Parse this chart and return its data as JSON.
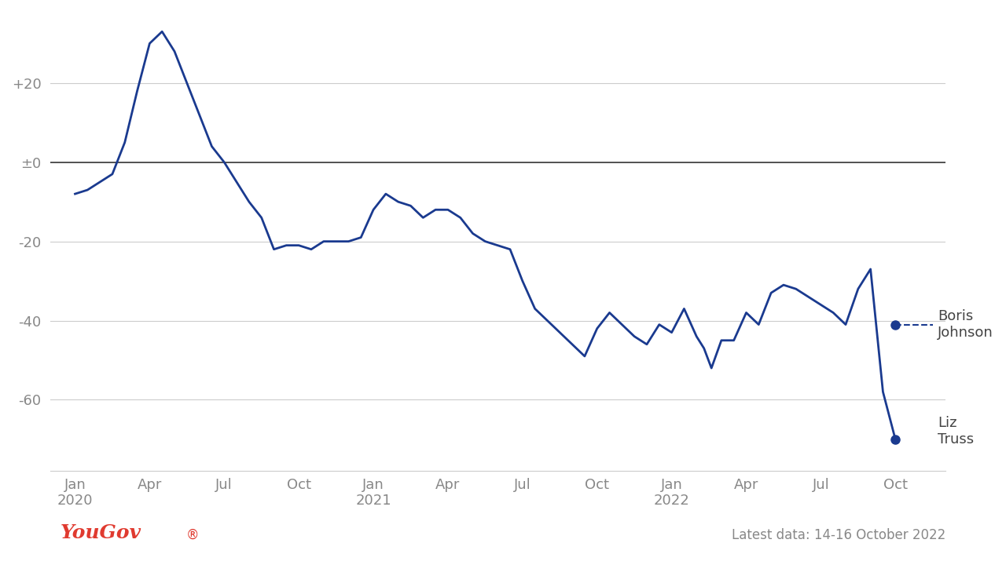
{
  "line_color": "#1a3a8f",
  "background_color": "#ffffff",
  "zero_line_color": "#333333",
  "grid_color": "#cccccc",
  "annotation_dot_color": "#1a3a8f",
  "dashed_line_color": "#1a3a8f",
  "yougov_color": "#e03a2f",
  "yticks": [
    -60,
    -40,
    -20,
    0,
    20
  ],
  "ytick_labels": [
    "-60",
    "-40",
    "-20",
    "±0",
    "+20"
  ],
  "footer_left": "YouGov®",
  "footer_right": "Latest data: 14-16 October 2022",
  "boris_label": "Boris\nJohnson",
  "liz_label": "Liz\nTruss",
  "boris_value": -41,
  "liz_value": -70,
  "xtick_labels": [
    "Jan\n2020",
    "Apr",
    "Jul",
    "Oct",
    "Jan\n2021",
    "Apr",
    "Jul",
    "Oct",
    "Jan\n2022",
    "Apr",
    "Jul",
    "Oct"
  ],
  "data_x": [
    0,
    0.5,
    1,
    1.5,
    2,
    2.5,
    3,
    3.5,
    4,
    4.5,
    5,
    5.5,
    6,
    6.5,
    7,
    7.5,
    8,
    8.5,
    9,
    9.5,
    10,
    10.5,
    11,
    11.5,
    12,
    12.5,
    13,
    13.5,
    14,
    14.5,
    15,
    15.5,
    16,
    16.5,
    17,
    17.5,
    18,
    18.5,
    19,
    19.5,
    20,
    20.5,
    21,
    21.5,
    22,
    22.5,
    23,
    23.5,
    24,
    24.5,
    25,
    25.3,
    25.6,
    26,
    26.5,
    27,
    27.5,
    28,
    28.5,
    29,
    29.5,
    30,
    30.5,
    31,
    31.5,
    32,
    32.5,
    33
  ],
  "data_y": [
    -8,
    -7,
    -5,
    -3,
    5,
    18,
    30,
    33,
    28,
    20,
    12,
    4,
    0,
    -5,
    -10,
    -14,
    -22,
    -21,
    -21,
    -22,
    -20,
    -20,
    -20,
    -19,
    -12,
    -8,
    -10,
    -11,
    -14,
    -12,
    -12,
    -14,
    -18,
    -20,
    -21,
    -22,
    -30,
    -37,
    -40,
    -43,
    -46,
    -49,
    -42,
    -38,
    -41,
    -44,
    -46,
    -41,
    -43,
    -37,
    -44,
    -47,
    -52,
    -45,
    -45,
    -38,
    -41,
    -33,
    -31,
    -32,
    -34,
    -36,
    -38,
    -41,
    -32,
    -27,
    -58,
    -70
  ]
}
